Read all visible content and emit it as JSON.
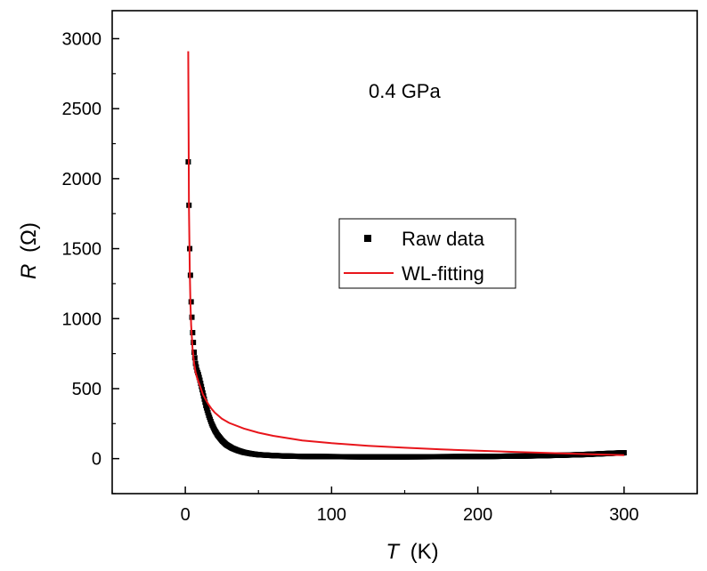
{
  "chart_data": {
    "type": "scatter",
    "annotation": "0.4 GPa",
    "xlabel": {
      "symbol": "T",
      "unit": "(K)"
    },
    "ylabel": {
      "symbol": "R",
      "unit": "(Ω)"
    },
    "xlim": [
      -50,
      350
    ],
    "ylim": [
      -250,
      3200
    ],
    "x_ticks": [
      0,
      100,
      200,
      300
    ],
    "y_ticks": [
      0,
      500,
      1000,
      1500,
      2000,
      2500,
      3000
    ],
    "grid": false,
    "legend_position": "center-right",
    "series": [
      {
        "name": "Raw data",
        "kind": "markers",
        "marker": "square",
        "color": "#000000",
        "x": [
          2,
          3,
          4,
          5,
          6,
          7,
          8,
          9,
          10,
          12,
          14,
          16,
          18,
          20,
          22,
          25,
          28,
          32,
          36,
          40,
          45,
          50,
          60,
          70,
          80,
          100,
          120,
          150,
          180,
          210,
          240,
          270,
          300
        ],
        "y": [
          2120,
          1500,
          1120,
          900,
          760,
          680,
          630,
          600,
          560,
          470,
          380,
          310,
          250,
          205,
          170,
          130,
          100,
          75,
          58,
          45,
          35,
          28,
          22,
          18,
          16,
          14,
          13,
          13,
          14,
          16,
          20,
          28,
          42
        ]
      },
      {
        "name": "WL-fitting",
        "kind": "line",
        "color": "#e8151b",
        "x": [
          2,
          2.5,
          3,
          3.5,
          4,
          5,
          6,
          7,
          8,
          9,
          10,
          12,
          14,
          16,
          18,
          20,
          25,
          30,
          40,
          50,
          60,
          80,
          100,
          125,
          150,
          175,
          200,
          225,
          250,
          275,
          300
        ],
        "y": [
          2910,
          1800,
          1350,
          1100,
          950,
          780,
          680,
          620,
          580,
          550,
          520,
          460,
          420,
          385,
          355,
          330,
          285,
          255,
          215,
          185,
          163,
          130,
          110,
          92,
          78,
          66,
          57,
          48,
          40,
          32,
          25
        ]
      }
    ]
  }
}
